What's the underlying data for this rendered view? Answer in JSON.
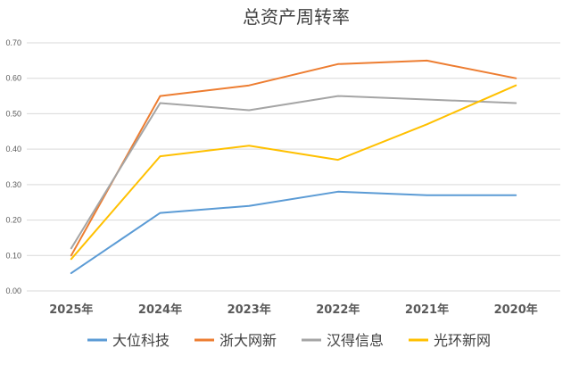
{
  "chart_data": {
    "type": "line",
    "title": "总资产周转率",
    "xlabel": "",
    "ylabel": "",
    "categories": [
      "2025年",
      "2024年",
      "2023年",
      "2022年",
      "2021年",
      "2020年"
    ],
    "ylim": [
      0,
      0.7
    ],
    "yticks": [
      "0.00",
      "0.10",
      "0.20",
      "0.30",
      "0.40",
      "0.50",
      "0.60",
      "0.70"
    ],
    "grid": true,
    "legend_position": "bottom",
    "series": [
      {
        "name": "大位科技",
        "color": "#5b9bd5",
        "values": [
          0.05,
          0.22,
          0.24,
          0.28,
          0.27,
          0.27
        ]
      },
      {
        "name": "浙大网新",
        "color": "#ed7d31",
        "values": [
          0.1,
          0.55,
          0.58,
          0.64,
          0.65,
          0.6
        ]
      },
      {
        "name": "汉得信息",
        "color": "#a5a5a5",
        "values": [
          0.12,
          0.53,
          0.51,
          0.55,
          0.54,
          0.53
        ]
      },
      {
        "name": "光环新网",
        "color": "#ffc000",
        "values": [
          0.09,
          0.38,
          0.41,
          0.37,
          0.47,
          0.58
        ]
      }
    ]
  }
}
